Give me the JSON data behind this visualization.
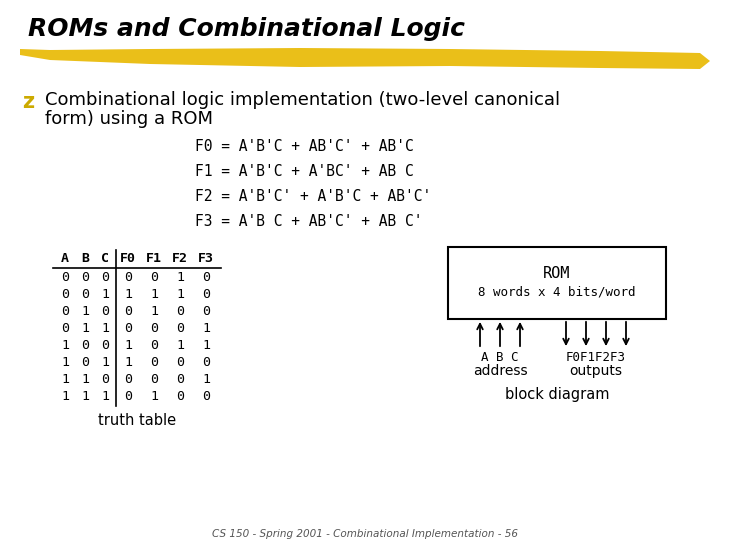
{
  "title": "ROMs and Combinational Logic",
  "bullet_char": "z",
  "bullet_text_line1": "Combinational logic implementation (two-level canonical",
  "bullet_text_line2": "form) using a ROM",
  "equations": [
    "F0 = A'B'C + AB'C' + AB'C",
    "F1 = A'B'C + A'BC' + AB C",
    "F2 = A'B'C' + A'B'C + AB'C'",
    "F3 = A'B C + AB'C' + AB C'"
  ],
  "table_headers": [
    "A",
    "B",
    "C",
    "F0",
    "F1",
    "F2",
    "F3"
  ],
  "table_data": [
    [
      0,
      0,
      0,
      0,
      0,
      1,
      0
    ],
    [
      0,
      0,
      1,
      1,
      1,
      1,
      0
    ],
    [
      0,
      1,
      0,
      0,
      1,
      0,
      0
    ],
    [
      0,
      1,
      1,
      0,
      0,
      0,
      1
    ],
    [
      1,
      0,
      0,
      1,
      0,
      1,
      1
    ],
    [
      1,
      0,
      1,
      1,
      0,
      0,
      0
    ],
    [
      1,
      1,
      0,
      0,
      0,
      0,
      1
    ],
    [
      1,
      1,
      1,
      0,
      1,
      0,
      0
    ]
  ],
  "truth_table_label": "truth table",
  "block_diagram_label": "block diagram",
  "rom_line1": "ROM",
  "rom_line2": "8 words x 4 bits/word",
  "address_label": "address",
  "outputs_label": "outputs",
  "abc_label": "A B C",
  "f_label": "F0F1F2F3",
  "footer": "CS 150 - Spring 2001 - Combinational Implementation - 56",
  "bg_color": "#ffffff",
  "title_color": "#000000",
  "bullet_color": "#ccaa00",
  "highlight_color": "#e8b800",
  "font_mono": "DejaVu Sans Mono",
  "font_sans": "DejaVu Sans"
}
